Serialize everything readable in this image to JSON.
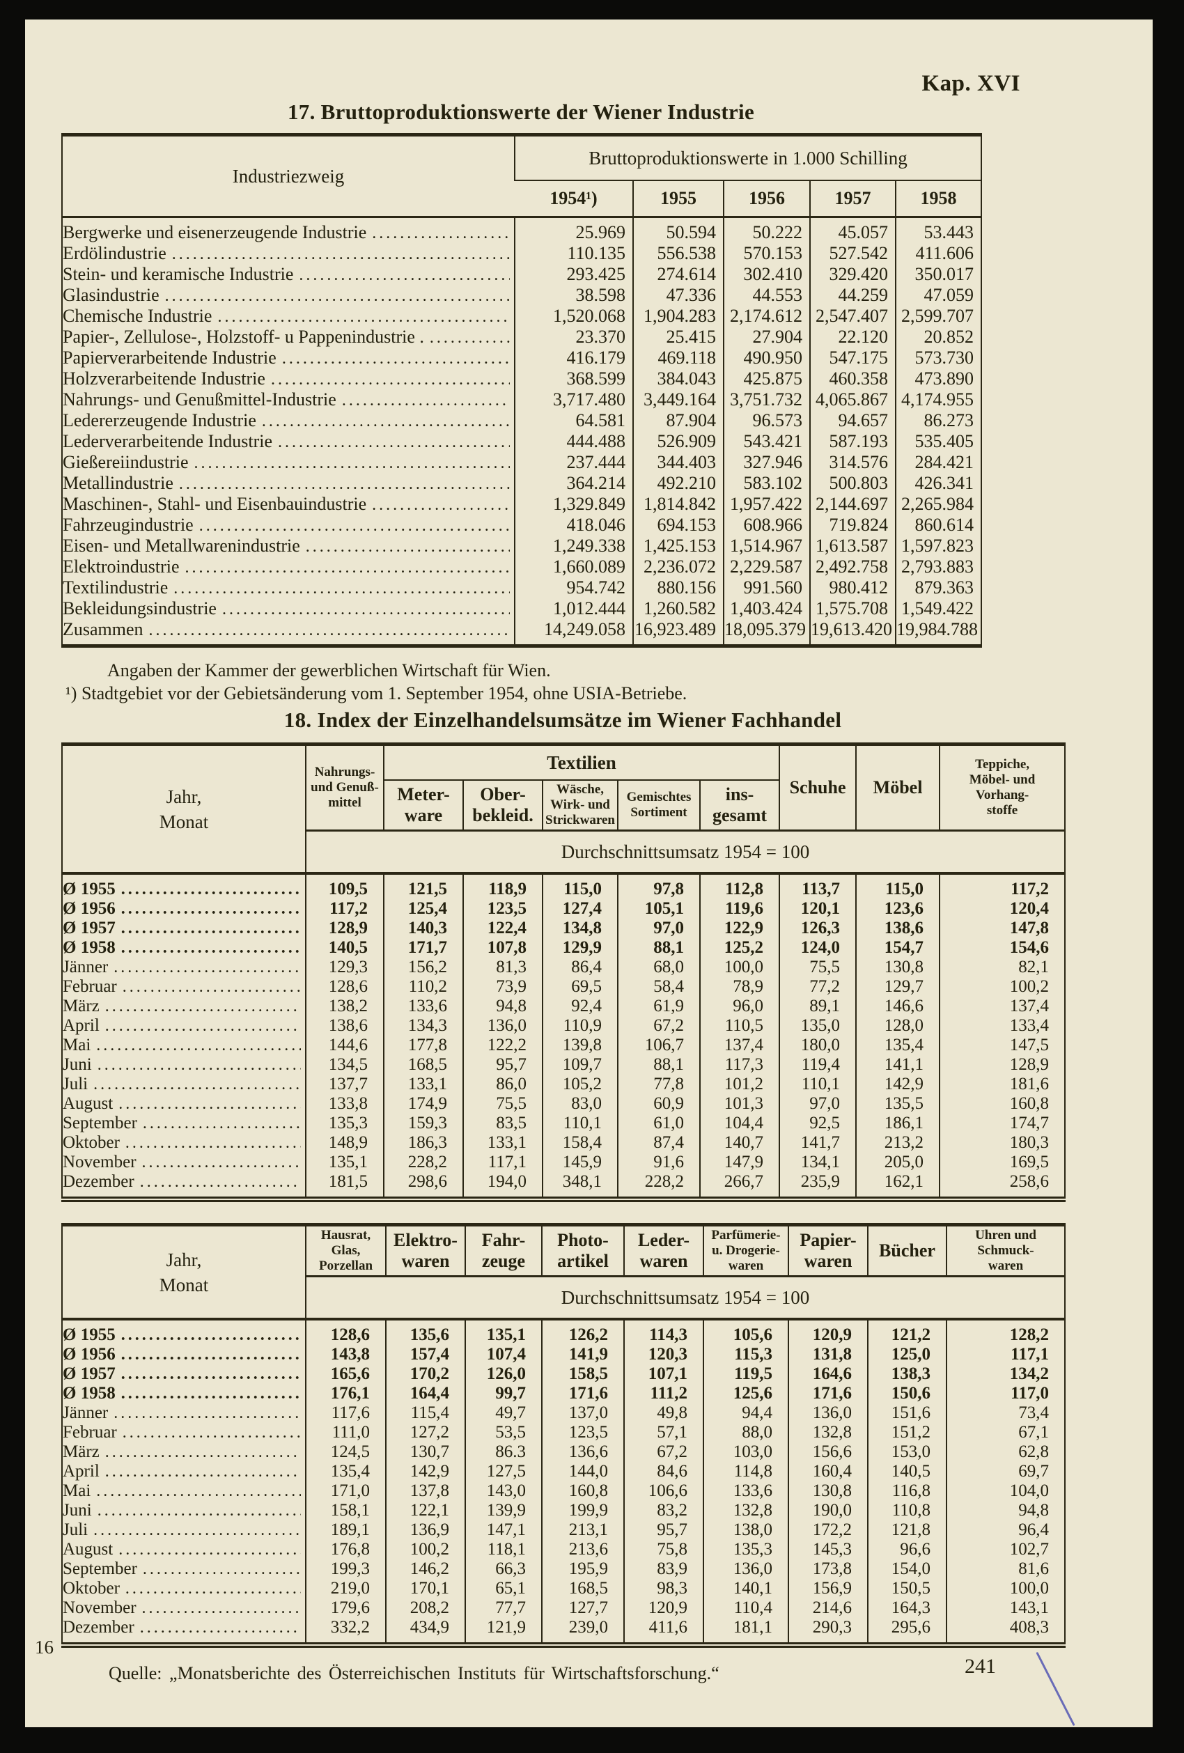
{
  "page": {
    "kapitel": "Kap. XVI",
    "page_number_left": "16",
    "page_number_right": "241"
  },
  "table17": {
    "title": "17. Bruttoproduktionswerte der Wiener Industrie",
    "row_header": "Industriezweig",
    "col_group_header": "Bruttoproduktionswerte in 1.000 Schilling",
    "years": [
      "1954¹)",
      "1955",
      "1956",
      "1957",
      "1958"
    ],
    "rows": [
      {
        "label": "Bergwerke und eisenerzeugende Industrie",
        "values": [
          "25.969",
          "50.594",
          "50.222",
          "45.057",
          "53.443"
        ]
      },
      {
        "label": "Erdölindustrie",
        "values": [
          "110.135",
          "556.538",
          "570.153",
          "527.542",
          "411.606"
        ]
      },
      {
        "label": "Stein- und keramische Industrie",
        "values": [
          "293.425",
          "274.614",
          "302.410",
          "329.420",
          "350.017"
        ]
      },
      {
        "label": "Glasindustrie",
        "values": [
          "38.598",
          "47.336",
          "44.553",
          "44.259",
          "47.059"
        ]
      },
      {
        "label": "Chemische Industrie",
        "values": [
          "1,520.068",
          "1,904.283",
          "2,174.612",
          "2,547.407",
          "2,599.707"
        ]
      },
      {
        "label": "Papier-, Zellulose-, Holzstoff- u Pappenindustrie .",
        "values": [
          "23.370",
          "25.415",
          "27.904",
          "22.120",
          "20.852"
        ]
      },
      {
        "label": "Papierverarbeitende Industrie",
        "values": [
          "416.179",
          "469.118",
          "490.950",
          "547.175",
          "573.730"
        ]
      },
      {
        "label": "Holzverarbeitende Industrie",
        "values": [
          "368.599",
          "384.043",
          "425.875",
          "460.358",
          "473.890"
        ]
      },
      {
        "label": "Nahrungs- und Genußmittel-Industrie",
        "values": [
          "3,717.480",
          "3,449.164",
          "3,751.732",
          "4,065.867",
          "4,174.955"
        ]
      },
      {
        "label": "Ledererzeugende Industrie",
        "values": [
          "64.581",
          "87.904",
          "96.573",
          "94.657",
          "86.273"
        ]
      },
      {
        "label": "Lederverarbeitende Industrie",
        "values": [
          "444.488",
          "526.909",
          "543.421",
          "587.193",
          "535.405"
        ]
      },
      {
        "label": "Gießereiindustrie",
        "values": [
          "237.444",
          "344.403",
          "327.946",
          "314.576",
          "284.421"
        ]
      },
      {
        "label": "Metallindustrie",
        "values": [
          "364.214",
          "492.210",
          "583.102",
          "500.803",
          "426.341"
        ]
      },
      {
        "label": "Maschinen-, Stahl- und Eisenbauindustrie",
        "values": [
          "1,329.849",
          "1,814.842",
          "1,957.422",
          "2,144.697",
          "2,265.984"
        ]
      },
      {
        "label": "Fahrzeugindustrie",
        "values": [
          "418.046",
          "694.153",
          "608.966",
          "719.824",
          "860.614"
        ]
      },
      {
        "label": "Eisen- und Metallwarenindustrie",
        "values": [
          "1,249.338",
          "1,425.153",
          "1,514.967",
          "1,613.587",
          "1,597.823"
        ]
      },
      {
        "label": "Elektroindustrie",
        "values": [
          "1,660.089",
          "2,236.072",
          "2,229.587",
          "2,492.758",
          "2,793.883"
        ]
      },
      {
        "label": "Textilindustrie",
        "values": [
          "954.742",
          "880.156",
          "991.560",
          "980.412",
          "879.363"
        ]
      },
      {
        "label": "Bekleidungsindustrie",
        "values": [
          "1,012.444",
          "1,260.582",
          "1,403.424",
          "1,575.708",
          "1,549.422"
        ]
      },
      {
        "label": "Zusammen",
        "values": [
          "14,249.058",
          "16,923.489",
          "18,095.379",
          "19,613.420",
          "19,984.788"
        ]
      }
    ],
    "notes": [
      "Angaben der Kammer der gewerblichen Wirtschaft für Wien.",
      "¹) Stadtgebiet vor der Gebietsänderung vom 1. September 1954, ohne USIA-Betriebe."
    ]
  },
  "table18": {
    "title": "18. Index der Einzelhandelsumsätze im Wiener Fachhandel",
    "source": "Quelle: „Monatsberichte des Österreichischen Instituts für Wirtschaftsforschung.“",
    "tableA": {
      "row_header": [
        "Jahr,",
        "Monat"
      ],
      "textilien_group": "Textilien",
      "subtitle": "Durchschnittsumsatz 1954 = 100",
      "col_nahrungs": [
        "Nahrungs-",
        "und Genuß-",
        "mittel"
      ],
      "col_meterware": [
        "Meter-",
        "ware"
      ],
      "col_oberbekleid": [
        "Ober-",
        "bekleid."
      ],
      "col_waesche": [
        "Wäsche,",
        "Wirk- und",
        "Strickwaren"
      ],
      "col_gemischtes": [
        "Gemischtes",
        "Sortiment"
      ],
      "col_insgesamt": [
        "ins-",
        "gesamt"
      ],
      "col_schuhe": "Schuhe",
      "col_moebel": "Möbel",
      "col_teppiche": [
        "Teppiche,",
        "Möbel- und",
        "Vorhang-",
        "stoffe"
      ],
      "rows": [
        {
          "label": "Ø 1955",
          "bold": true,
          "values": [
            "109,5",
            "121,5",
            "118,9",
            "115,0",
            "97,8",
            "112,8",
            "113,7",
            "115,0",
            "117,2"
          ]
        },
        {
          "label": "Ø 1956",
          "bold": true,
          "values": [
            "117,2",
            "125,4",
            "123,5",
            "127,4",
            "105,1",
            "119,6",
            "120,1",
            "123,6",
            "120,4"
          ]
        },
        {
          "label": "Ø 1957",
          "bold": true,
          "values": [
            "128,9",
            "140,3",
            "122,4",
            "134,8",
            "97,0",
            "122,9",
            "126,3",
            "138,6",
            "147,8"
          ]
        },
        {
          "label": "Ø 1958",
          "bold": true,
          "values": [
            "140,5",
            "171,7",
            "107,8",
            "129,9",
            "88,1",
            "125,2",
            "124,0",
            "154,7",
            "154,6"
          ]
        },
        {
          "label": "Jänner",
          "bold": false,
          "values": [
            "129,3",
            "156,2",
            "81,3",
            "86,4",
            "68,0",
            "100,0",
            "75,5",
            "130,8",
            "82,1"
          ]
        },
        {
          "label": "Februar",
          "bold": false,
          "values": [
            "128,6",
            "110,2",
            "73,9",
            "69,5",
            "58,4",
            "78,9",
            "77,2",
            "129,7",
            "100,2"
          ]
        },
        {
          "label": "März",
          "bold": false,
          "values": [
            "138,2",
            "133,6",
            "94,8",
            "92,4",
            "61,9",
            "96,0",
            "89,1",
            "146,6",
            "137,4"
          ]
        },
        {
          "label": "April",
          "bold": false,
          "values": [
            "138,6",
            "134,3",
            "136,0",
            "110,9",
            "67,2",
            "110,5",
            "135,0",
            "128,0",
            "133,4"
          ]
        },
        {
          "label": "Mai",
          "bold": false,
          "values": [
            "144,6",
            "177,8",
            "122,2",
            "139,8",
            "106,7",
            "137,4",
            "180,0",
            "135,4",
            "147,5"
          ]
        },
        {
          "label": "Juni",
          "bold": false,
          "values": [
            "134,5",
            "168,5",
            "95,7",
            "109,7",
            "88,1",
            "117,3",
            "119,4",
            "141,1",
            "128,9"
          ]
        },
        {
          "label": "Juli",
          "bold": false,
          "values": [
            "137,7",
            "133,1",
            "86,0",
            "105,2",
            "77,8",
            "101,2",
            "110,1",
            "142,9",
            "181,6"
          ]
        },
        {
          "label": "August",
          "bold": false,
          "values": [
            "133,8",
            "174,9",
            "75,5",
            "83,0",
            "60,9",
            "101,3",
            "97,0",
            "135,5",
            "160,8"
          ]
        },
        {
          "label": "September",
          "bold": false,
          "values": [
            "135,3",
            "159,3",
            "83,5",
            "110,1",
            "61,0",
            "104,4",
            "92,5",
            "186,1",
            "174,7"
          ]
        },
        {
          "label": "Oktober",
          "bold": false,
          "values": [
            "148,9",
            "186,3",
            "133,1",
            "158,4",
            "87,4",
            "140,7",
            "141,7",
            "213,2",
            "180,3"
          ]
        },
        {
          "label": "November",
          "bold": false,
          "values": [
            "135,1",
            "228,2",
            "117,1",
            "145,9",
            "91,6",
            "147,9",
            "134,1",
            "205,0",
            "169,5"
          ]
        },
        {
          "label": "Dezember",
          "bold": false,
          "values": [
            "181,5",
            "298,6",
            "194,0",
            "348,1",
            "228,2",
            "266,7",
            "235,9",
            "162,1",
            "258,6"
          ]
        }
      ]
    },
    "tableB": {
      "row_header": [
        "Jahr,",
        "Monat"
      ],
      "subtitle": "Durchschnittsumsatz 1954 = 100",
      "col_hausrat": [
        "Hausrat,",
        "Glas,",
        "Porzellan"
      ],
      "col_elektro": [
        "Elektro-",
        "waren"
      ],
      "col_fahrzeuge": [
        "Fahr-",
        "zeuge"
      ],
      "col_photo": [
        "Photo-",
        "artikel"
      ],
      "col_leder": [
        "Leder-",
        "waren"
      ],
      "col_parfuemerie": [
        "Parfümerie-",
        "u. Drogerie-",
        "waren"
      ],
      "col_papier": [
        "Papier-",
        "waren"
      ],
      "col_buecher": "Bücher",
      "col_uhren": [
        "Uhren und",
        "Schmuck-",
        "waren"
      ],
      "rows": [
        {
          "label": "Ø 1955",
          "bold": true,
          "values": [
            "128,6",
            "135,6",
            "135,1",
            "126,2",
            "114,3",
            "105,6",
            "120,9",
            "121,2",
            "128,2"
          ]
        },
        {
          "label": "Ø 1956",
          "bold": true,
          "values": [
            "143,8",
            "157,4",
            "107,4",
            "141,9",
            "120,3",
            "115,3",
            "131,8",
            "125,0",
            "117,1"
          ]
        },
        {
          "label": "Ø 1957",
          "bold": true,
          "values": [
            "165,6",
            "170,2",
            "126,0",
            "158,5",
            "107,1",
            "119,5",
            "164,6",
            "138,3",
            "134,2"
          ]
        },
        {
          "label": "Ø 1958",
          "bold": true,
          "values": [
            "176,1",
            "164,4",
            "99,7",
            "171,6",
            "111,2",
            "125,6",
            "171,6",
            "150,6",
            "117,0"
          ]
        },
        {
          "label": "Jänner",
          "bold": false,
          "values": [
            "117,6",
            "115,4",
            "49,7",
            "137,0",
            "49,8",
            "94,4",
            "136,0",
            "151,6",
            "73,4"
          ]
        },
        {
          "label": "Februar",
          "bold": false,
          "values": [
            "111,0",
            "127,2",
            "53,5",
            "123,5",
            "57,1",
            "88,0",
            "132,8",
            "151,2",
            "67,1"
          ]
        },
        {
          "label": "März",
          "bold": false,
          "values": [
            "124,5",
            "130,7",
            "86.3",
            "136,6",
            "67,2",
            "103,0",
            "156,6",
            "153,0",
            "62,8"
          ]
        },
        {
          "label": "April",
          "bold": false,
          "values": [
            "135,4",
            "142,9",
            "127,5",
            "144,0",
            "84,6",
            "114,8",
            "160,4",
            "140,5",
            "69,7"
          ]
        },
        {
          "label": "Mai",
          "bold": false,
          "values": [
            "171,0",
            "137,8",
            "143,0",
            "160,8",
            "106,6",
            "133,6",
            "130,8",
            "116,8",
            "104,0"
          ]
        },
        {
          "label": "Juni",
          "bold": false,
          "values": [
            "158,1",
            "122,1",
            "139,9",
            "199,9",
            "83,2",
            "132,8",
            "190,0",
            "110,8",
            "94,8"
          ]
        },
        {
          "label": "Juli",
          "bold": false,
          "values": [
            "189,1",
            "136,9",
            "147,1",
            "213,1",
            "95,7",
            "138,0",
            "172,2",
            "121,8",
            "96,4"
          ]
        },
        {
          "label": "August",
          "bold": false,
          "values": [
            "176,8",
            "100,2",
            "118,1",
            "213,6",
            "75,8",
            "135,3",
            "145,3",
            "96,6",
            "102,7"
          ]
        },
        {
          "label": "September",
          "bold": false,
          "values": [
            "199,3",
            "146,2",
            "66,3",
            "195,9",
            "83,9",
            "136,0",
            "173,8",
            "154,0",
            "81,6"
          ]
        },
        {
          "label": "Oktober",
          "bold": false,
          "values": [
            "219,0",
            "170,1",
            "65,1",
            "168,5",
            "98,3",
            "140,1",
            "156,9",
            "150,5",
            "100,0"
          ]
        },
        {
          "label": "November",
          "bold": false,
          "values": [
            "179,6",
            "208,2",
            "77,7",
            "127,7",
            "120,9",
            "110,4",
            "214,6",
            "164,3",
            "143,1"
          ]
        },
        {
          "label": "Dezember",
          "bold": false,
          "values": [
            "332,2",
            "434,9",
            "121,9",
            "239,0",
            "411,6",
            "181,1",
            "290,3",
            "295,6",
            "408,3"
          ]
        }
      ]
    }
  }
}
